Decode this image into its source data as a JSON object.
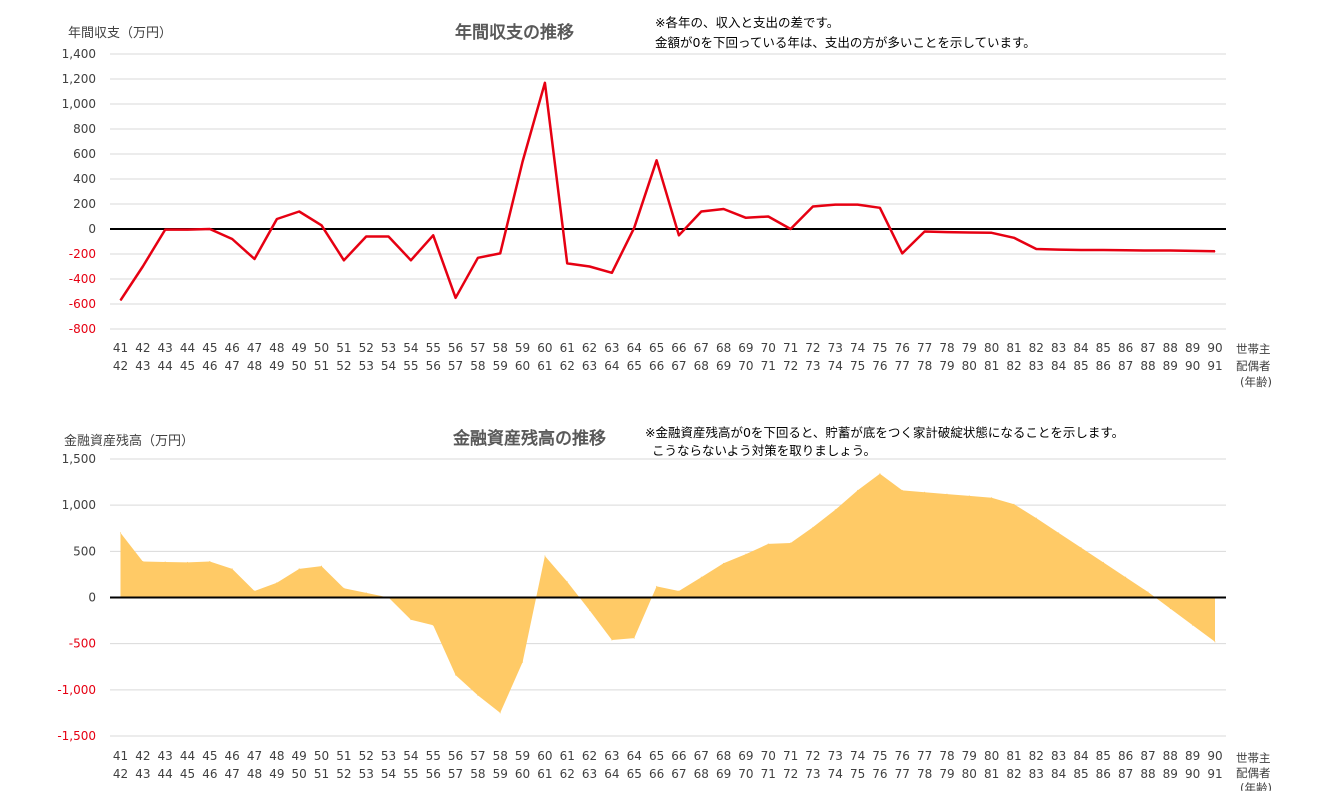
{
  "chart_data": [
    {
      "type": "line",
      "title": "年間収支の推移",
      "ylabel": "年間収支（万円）",
      "notes": [
        "※各年の、収入と支出の差です。",
        "金額が0を下回っている年は、支出の方が多いことを示しています。"
      ],
      "ylim": [
        -800,
        1400
      ],
      "yticks": [
        "1,400",
        "1,200",
        "1,000",
        "800",
        "600",
        "400",
        "200",
        "0",
        "-200",
        "-400",
        "-600",
        "-800"
      ],
      "series_color": "#e60012",
      "negative_tick_color": "#e60012",
      "positive_tick_color": "#404040",
      "categories_head": [
        "41",
        "42",
        "43",
        "44",
        "45",
        "46",
        "47",
        "48",
        "49",
        "50",
        "51",
        "52",
        "53",
        "54",
        "55",
        "56",
        "57",
        "58",
        "59",
        "60",
        "61",
        "62",
        "63",
        "64",
        "65",
        "66",
        "67",
        "68",
        "69",
        "70",
        "71",
        "72",
        "73",
        "74",
        "75",
        "76",
        "77",
        "78",
        "79",
        "80",
        "81",
        "82",
        "83",
        "84",
        "85",
        "86",
        "87",
        "88",
        "89",
        "90"
      ],
      "categories_spouse": [
        "42",
        "43",
        "44",
        "45",
        "46",
        "47",
        "48",
        "49",
        "50",
        "51",
        "52",
        "53",
        "54",
        "55",
        "56",
        "57",
        "58",
        "59",
        "60",
        "61",
        "62",
        "63",
        "64",
        "65",
        "66",
        "67",
        "68",
        "69",
        "70",
        "71",
        "72",
        "73",
        "74",
        "75",
        "76",
        "77",
        "78",
        "79",
        "80",
        "81",
        "82",
        "83",
        "84",
        "85",
        "86",
        "87",
        "88",
        "89",
        "90",
        "91"
      ],
      "legend_labels": [
        "世帯主",
        "配偶者",
        "(年齢)"
      ],
      "values": [
        -570,
        -300,
        -5,
        -5,
        0,
        -80,
        -240,
        80,
        140,
        30,
        -250,
        -60,
        -60,
        -250,
        -50,
        -550,
        -230,
        -195,
        540,
        1170,
        -275,
        -300,
        -350,
        10,
        550,
        -50,
        140,
        160,
        90,
        100,
        0,
        180,
        195,
        195,
        170,
        -195,
        -20,
        -25,
        -28,
        -30,
        -70,
        -160,
        -165,
        -168,
        -168,
        -170,
        -172,
        -172,
        -175,
        -178
      ]
    },
    {
      "type": "area",
      "title": "金融資産残高の推移",
      "ylabel": "金融資産残高（万円）",
      "notes": [
        "※金融資産残高が0を下回ると、貯蓄が底をつく家計破綻状態になることを示します。",
        "こうならないよう対策を取りましょう。"
      ],
      "ylim": [
        -1500,
        1500
      ],
      "yticks": [
        "1,500",
        "1,000",
        "500",
        "0",
        "-500",
        "-1,000",
        "-1,500"
      ],
      "series_color": "#ffca66",
      "negative_tick_color": "#e60012",
      "positive_tick_color": "#404040",
      "categories_head": [
        "41",
        "42",
        "43",
        "44",
        "45",
        "46",
        "47",
        "48",
        "49",
        "50",
        "51",
        "52",
        "53",
        "54",
        "55",
        "56",
        "57",
        "58",
        "59",
        "60",
        "61",
        "62",
        "63",
        "64",
        "65",
        "66",
        "67",
        "68",
        "69",
        "70",
        "71",
        "72",
        "73",
        "74",
        "75",
        "76",
        "77",
        "78",
        "79",
        "80",
        "81",
        "82",
        "83",
        "84",
        "85",
        "86",
        "87",
        "88",
        "89",
        "90"
      ],
      "categories_spouse": [
        "42",
        "43",
        "44",
        "45",
        "46",
        "47",
        "48",
        "49",
        "50",
        "51",
        "52",
        "53",
        "54",
        "55",
        "56",
        "57",
        "58",
        "59",
        "60",
        "61",
        "62",
        "63",
        "64",
        "65",
        "66",
        "67",
        "68",
        "69",
        "70",
        "71",
        "72",
        "73",
        "74",
        "75",
        "76",
        "77",
        "78",
        "79",
        "80",
        "81",
        "82",
        "83",
        "84",
        "85",
        "86",
        "87",
        "88",
        "89",
        "90",
        "91"
      ],
      "legend_labels": [
        "世帯主",
        "配偶者",
        "(年齢)"
      ],
      "values": [
        700,
        390,
        385,
        380,
        390,
        310,
        70,
        160,
        310,
        340,
        100,
        50,
        0,
        -240,
        -300,
        -840,
        -1060,
        -1250,
        -700,
        450,
        170,
        -140,
        -460,
        -440,
        120,
        70,
        220,
        370,
        470,
        580,
        590,
        760,
        950,
        1160,
        1340,
        1160,
        1140,
        1120,
        1100,
        1080,
        1010,
        860,
        700,
        540,
        380,
        220,
        60,
        -120,
        -300,
        -480
      ]
    }
  ]
}
